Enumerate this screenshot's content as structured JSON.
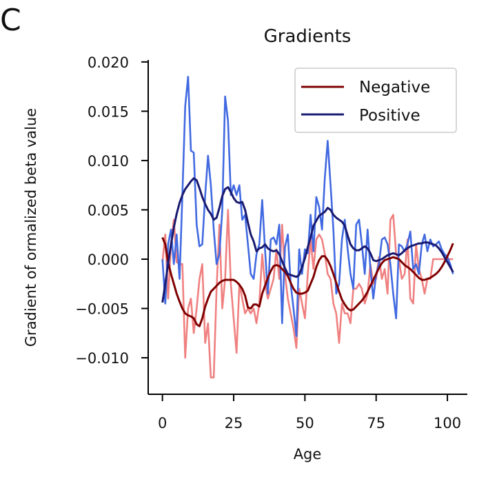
{
  "panel_letter": "C",
  "chart_data": {
    "type": "line",
    "title": "Gradients",
    "xlabel": "Age",
    "ylabel": "Gradient of ormalized beta value",
    "xlim": [
      -5,
      107
    ],
    "ylim": [
      -0.0137,
      0.0202
    ],
    "x_ticks": [
      0,
      25,
      50,
      75,
      100
    ],
    "x_tick_labels": [
      "0",
      "25",
      "50",
      "75",
      "100"
    ],
    "y_ticks": [
      -0.01,
      -0.005,
      0,
      0.005,
      0.01,
      0.015,
      0.02
    ],
    "y_tick_labels": [
      "−0.010",
      "−0.005",
      "0.000",
      "0.005",
      "0.010",
      "0.015",
      "0.020"
    ],
    "grid": false,
    "legend_position": "top-right",
    "legend": [
      {
        "label": "Negative",
        "color": "#7f0000"
      },
      {
        "label": "Positive",
        "color": "#191970"
      }
    ],
    "series": [
      {
        "name": "Negative",
        "role": "raw",
        "color": "#f08080",
        "x": [
          0,
          1,
          2,
          3,
          4,
          5,
          6,
          7,
          8,
          9,
          10,
          11,
          12,
          13,
          14,
          15,
          16,
          17,
          18,
          19,
          20,
          21,
          22,
          23,
          24,
          25,
          26,
          27,
          28,
          29,
          30,
          31,
          32,
          33,
          34,
          35,
          36,
          37,
          38,
          39,
          40,
          41,
          42,
          43,
          44,
          45,
          46,
          47,
          48,
          49,
          50,
          51,
          52,
          53,
          54,
          55,
          56,
          57,
          58,
          59,
          60,
          61,
          62,
          63,
          64,
          65,
          66,
          67,
          68,
          69,
          70,
          71,
          72,
          73,
          74,
          75,
          76,
          77,
          78,
          79,
          80,
          81,
          82,
          83,
          84,
          85,
          86,
          87,
          88,
          89,
          90,
          91,
          92,
          93,
          94,
          95,
          96,
          97,
          98,
          99,
          100,
          101,
          102
        ],
        "y": [
          -0.0003,
          0.0025,
          -0.004,
          0.0015,
          0.004,
          -0.0003,
          -0.0005,
          -0.0005,
          -0.01,
          -0.005,
          -0.004,
          -0.0075,
          -0.005,
          -0.002,
          -0.0005,
          -0.0085,
          -0.0065,
          -0.012,
          -0.012,
          -0.003,
          0.0035,
          -0.005,
          -0.002,
          0.005,
          -0.0025,
          -0.006,
          -0.0095,
          -0.0025,
          -0.004,
          -0.0055,
          -0.005,
          -0.0055,
          -0.005,
          -0.0065,
          -0.0045,
          0.0005,
          -0.0025,
          -0.004,
          -0.003,
          -0.002,
          0.001,
          -0.002,
          0.0035,
          -0.0015,
          -0.004,
          -0.0055,
          -0.007,
          -0.009,
          -0.003,
          -0.0045,
          -0.006,
          -0.0015,
          0.002,
          -0.001,
          0.002,
          0.0025,
          0.002,
          0.0005,
          -0.0015,
          -0.002,
          -0.0045,
          -0.0055,
          -0.0085,
          -0.0045,
          -0.0055,
          -0.0055,
          -0.0065,
          -0.003,
          -0.003,
          -0.0025,
          -0.003,
          -0.0045,
          -0.0035,
          -0.0005,
          -0.0025,
          -0.002,
          0.0002,
          -0.002,
          -0.001,
          -0.0035,
          0.004,
          0.0045,
          0.0005,
          0.0,
          -0.002,
          -0.0015,
          0.002,
          -0.004,
          -0.0045,
          0.0015,
          -0.001,
          -0.002,
          -0.0035,
          -0.002,
          -0.002,
          0.0,
          0.0,
          0.0,
          0.0,
          0.0,
          0.0,
          0.0,
          0.0
        ]
      },
      {
        "name": "Positive",
        "role": "raw",
        "color": "#4169e1",
        "x": [
          0,
          1,
          2,
          3,
          4,
          5,
          6,
          7,
          8,
          9,
          10,
          11,
          12,
          13,
          14,
          15,
          16,
          17,
          18,
          19,
          20,
          21,
          22,
          23,
          24,
          25,
          26,
          27,
          28,
          29,
          30,
          31,
          32,
          33,
          34,
          35,
          36,
          37,
          38,
          39,
          40,
          41,
          42,
          43,
          44,
          45,
          46,
          47,
          48,
          49,
          50,
          51,
          52,
          53,
          54,
          55,
          56,
          57,
          58,
          59,
          60,
          61,
          62,
          63,
          64,
          65,
          66,
          67,
          68,
          69,
          70,
          71,
          72,
          73,
          74,
          75,
          76,
          77,
          78,
          79,
          80,
          81,
          82,
          83,
          84,
          85,
          86,
          87,
          88,
          89,
          90,
          91,
          92,
          93,
          94,
          95,
          96,
          97,
          98,
          99,
          100,
          101,
          102
        ],
        "y": [
          0.0,
          -0.0045,
          0.0015,
          0.003,
          -0.0005,
          0.0025,
          -0.002,
          0.0065,
          0.0155,
          0.0185,
          0.011,
          0.0108,
          0.0035,
          0.0013,
          0.0015,
          0.0065,
          0.0105,
          0.0075,
          0.003,
          -0.0005,
          0.0005,
          0.005,
          0.0165,
          0.014,
          0.0065,
          0.0075,
          0.0065,
          0.0075,
          0.004,
          0.0045,
          0.0015,
          -0.0015,
          -0.002,
          0.0005,
          0.0015,
          0.006,
          0.001,
          -0.0035,
          0.002,
          0.0022,
          0.0015,
          0.0035,
          -0.0065,
          0.0012,
          0.0025,
          -0.0025,
          -0.005,
          -0.0078,
          0.001,
          -0.0015,
          0.001,
          0.0006,
          0.0045,
          0.0008,
          0.0063,
          0.0053,
          0.003,
          0.0083,
          0.012,
          0.0075,
          0.003,
          -0.0035,
          -0.0025,
          0.002,
          0.004,
          0.001,
          -0.0015,
          -0.003,
          0.0035,
          0.004,
          0.0015,
          -0.0015,
          0.003,
          -0.001,
          -0.004,
          -0.0015,
          -0.0005,
          0.002,
          0.0022,
          0.0015,
          -0.0005,
          -0.0035,
          -0.006,
          0.0015,
          0.0013,
          0.0008,
          0.0015,
          0.0028,
          -0.001,
          -0.0005,
          -0.0015,
          0.0015,
          0.0025,
          0.0008,
          0.002,
          0.0013,
          0.0015,
          0.0018,
          0.001,
          0.0005,
          0.0002,
          -0.0005,
          -0.0015
        ]
      },
      {
        "name": "Negative",
        "role": "smoothed",
        "color": "#7f0000",
        "x": [
          0,
          1,
          2,
          3,
          4,
          5,
          6,
          7,
          8,
          9,
          10,
          11,
          12,
          13,
          14,
          15,
          16,
          17,
          18,
          19,
          20,
          21,
          22,
          23,
          24,
          25,
          26,
          27,
          28,
          29,
          30,
          31,
          32,
          33,
          34,
          35,
          36,
          37,
          38,
          39,
          40,
          41,
          42,
          43,
          44,
          45,
          46,
          47,
          48,
          49,
          50,
          51,
          52,
          53,
          54,
          55,
          56,
          57,
          58,
          59,
          60,
          61,
          62,
          63,
          64,
          65,
          66,
          67,
          68,
          69,
          70,
          71,
          72,
          73,
          74,
          75,
          76,
          77,
          78,
          79,
          80,
          81,
          82,
          83,
          84,
          85,
          86,
          87,
          88,
          89,
          90,
          91,
          92,
          93,
          94,
          95,
          96,
          97,
          98,
          99,
          100,
          101,
          102
        ],
        "y": [
          0.0022,
          0.0015,
          -0.0003,
          -0.0015,
          -0.0025,
          -0.0035,
          -0.0043,
          -0.005,
          -0.0055,
          -0.0057,
          -0.0058,
          -0.006,
          -0.0066,
          -0.0068,
          -0.006,
          -0.0048,
          -0.004,
          -0.0033,
          -0.003,
          -0.0027,
          -0.0024,
          -0.0022,
          -0.0021,
          -0.0021,
          -0.0021,
          -0.0021,
          -0.0023,
          -0.0026,
          -0.003,
          -0.0037,
          -0.0049,
          -0.005,
          -0.0046,
          -0.0046,
          -0.0048,
          -0.0035,
          -0.0027,
          -0.0019,
          -0.0012,
          -0.0007,
          -0.0006,
          -0.0007,
          -0.001,
          -0.0013,
          -0.0017,
          -0.0024,
          -0.003,
          -0.0034,
          -0.0035,
          -0.0035,
          -0.0034,
          -0.0032,
          -0.0025,
          -0.0018,
          -0.0008,
          -0.0001,
          0.0003,
          0.0003,
          -0.0001,
          -0.0007,
          -0.0015,
          -0.0024,
          -0.0033,
          -0.0041,
          -0.0046,
          -0.005,
          -0.0052,
          -0.0051,
          -0.0048,
          -0.0045,
          -0.0042,
          -0.0038,
          -0.0033,
          -0.0027,
          -0.0021,
          -0.0015,
          -0.0009,
          -0.0004,
          -0.0001,
          0.0,
          0.0001,
          0.0002,
          0.0001,
          0.0,
          -0.0003,
          -0.0006,
          -0.0008,
          -0.001,
          -0.0013,
          -0.0016,
          -0.0019,
          -0.0021,
          -0.0021,
          -0.002,
          -0.0019,
          -0.0017,
          -0.0015,
          -0.0012,
          -0.0008,
          -0.0003,
          0.0003,
          0.0009,
          0.0016
        ]
      },
      {
        "name": "Positive",
        "role": "smoothed",
        "color": "#191970",
        "x": [
          0,
          1,
          2,
          3,
          4,
          5,
          6,
          7,
          8,
          9,
          10,
          11,
          12,
          13,
          14,
          15,
          16,
          17,
          18,
          19,
          20,
          21,
          22,
          23,
          24,
          25,
          26,
          27,
          28,
          29,
          30,
          31,
          32,
          33,
          34,
          35,
          36,
          37,
          38,
          39,
          40,
          41,
          42,
          43,
          44,
          45,
          46,
          47,
          48,
          49,
          50,
          51,
          52,
          53,
          54,
          55,
          56,
          57,
          58,
          59,
          60,
          61,
          62,
          63,
          64,
          65,
          66,
          67,
          68,
          69,
          70,
          71,
          72,
          73,
          74,
          75,
          76,
          77,
          78,
          79,
          80,
          81,
          82,
          83,
          84,
          85,
          86,
          87,
          88,
          89,
          90,
          91,
          92,
          93,
          94,
          95,
          96,
          97,
          98,
          99,
          100,
          101,
          102
        ],
        "y": [
          -0.0044,
          -0.0025,
          -0.0005,
          0.0015,
          0.0032,
          0.0046,
          0.0057,
          0.0065,
          0.0071,
          0.0075,
          0.0079,
          0.0082,
          0.008,
          0.0072,
          0.0063,
          0.0056,
          0.005,
          0.0046,
          0.004,
          0.0042,
          0.0052,
          0.0064,
          0.0071,
          0.0073,
          0.0068,
          0.0062,
          0.0058,
          0.0057,
          0.0058,
          0.005,
          0.0037,
          0.0025,
          0.0018,
          0.0008,
          0.0011,
          0.0012,
          0.0015,
          0.0011,
          0.0009,
          0.0008,
          0.0009,
          0.0005,
          -0.0002,
          -0.0009,
          -0.0015,
          -0.0016,
          -0.0017,
          -0.0018,
          -0.0016,
          -0.0008,
          0.0001,
          0.0012,
          0.0022,
          0.0034,
          0.0039,
          0.0044,
          0.0046,
          0.0048,
          0.0052,
          0.005,
          0.0045,
          0.0042,
          0.004,
          0.0038,
          0.0034,
          0.0024,
          0.0015,
          0.0011,
          0.0009,
          0.0009,
          0.0011,
          0.0013,
          0.0011,
          0.0006,
          -0.0001,
          -0.0002,
          -0.0001,
          0.0,
          0.0002,
          0.0004,
          0.0005,
          0.0006,
          0.0005,
          0.0004,
          0.0006,
          0.0009,
          0.0011,
          0.0013,
          0.0014,
          0.0015,
          0.0016,
          0.0016,
          0.0017,
          0.0017,
          0.0016,
          0.0015,
          0.0014,
          0.0011,
          0.0007,
          0.0002,
          -0.0003,
          -0.0008,
          -0.0013
        ]
      }
    ]
  }
}
